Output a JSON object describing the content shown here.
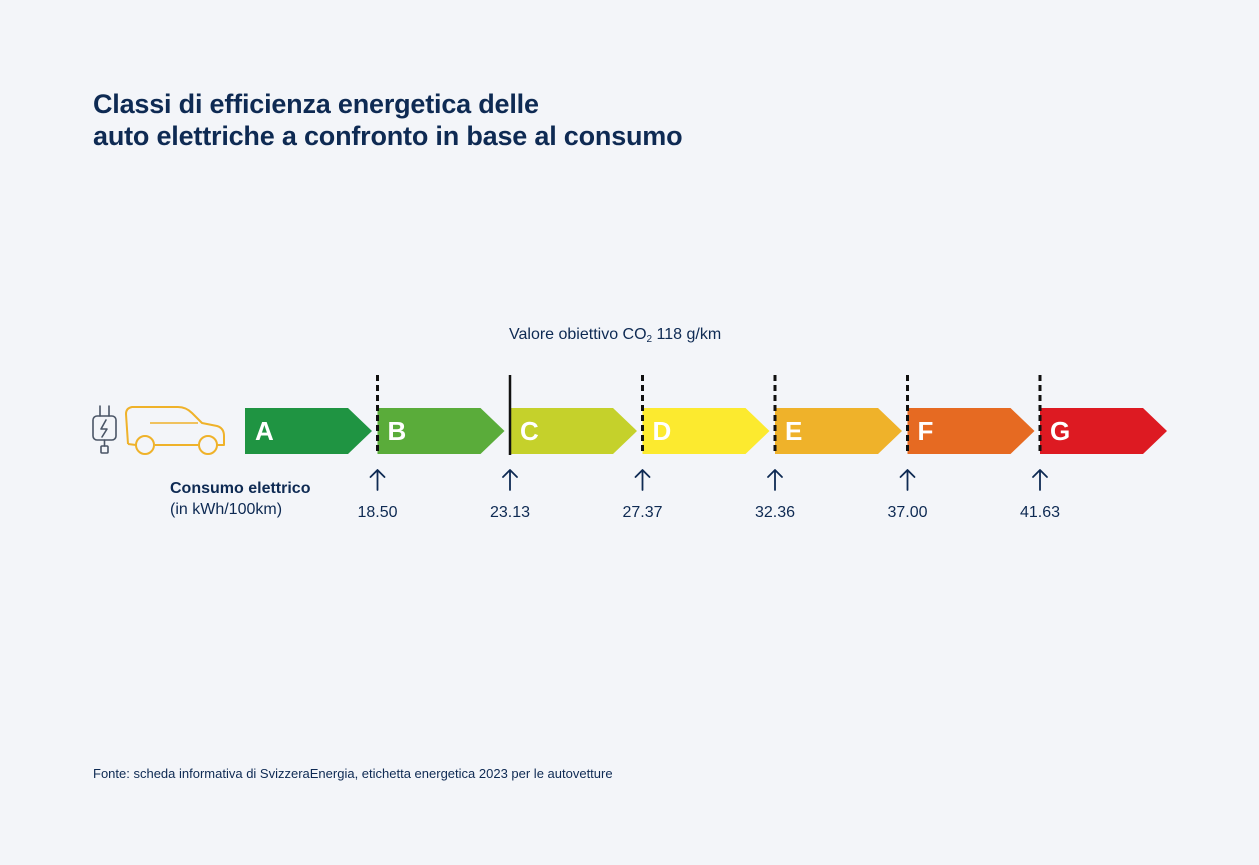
{
  "title": {
    "line1": "Classi di efficienza energetica delle",
    "line2": "auto elettriche a confronto in base al consumo"
  },
  "target": {
    "prefix": "Valore obiettivo CO",
    "subscript": "2",
    "suffix": " 118 g/km"
  },
  "consumption_label": {
    "line1": "Consumo elettrico",
    "line2": "(in kWh/100km)"
  },
  "source": "Fonte: scheda informativa di SvizzeraEnergia, etichetta energetica 2023 per le autovetture",
  "icons": [
    "plug-icon",
    "car-icon",
    "arrow-up-icon"
  ],
  "chart_data": {
    "type": "bar",
    "title": "Classi di efficienza energetica delle auto elettriche a confronto in base al consumo",
    "xlabel": "Consumo elettrico (in kWh/100km)",
    "classes": [
      {
        "label": "A",
        "color": "#1f9442"
      },
      {
        "label": "B",
        "color": "#5aac3a"
      },
      {
        "label": "C",
        "color": "#c5d12b"
      },
      {
        "label": "D",
        "color": "#fcea2f"
      },
      {
        "label": "E",
        "color": "#efb22a"
      },
      {
        "label": "F",
        "color": "#e66a22"
      },
      {
        "label": "G",
        "color": "#dd1a22"
      }
    ],
    "thresholds": [
      {
        "value": "18.50",
        "style": "dashed"
      },
      {
        "value": "23.13",
        "style": "solid"
      },
      {
        "value": "27.37",
        "style": "dashed"
      },
      {
        "value": "32.36",
        "style": "dashed"
      },
      {
        "value": "37.00",
        "style": "dashed"
      },
      {
        "value": "41.63",
        "style": "dashed"
      }
    ],
    "target_threshold_index": 1
  }
}
